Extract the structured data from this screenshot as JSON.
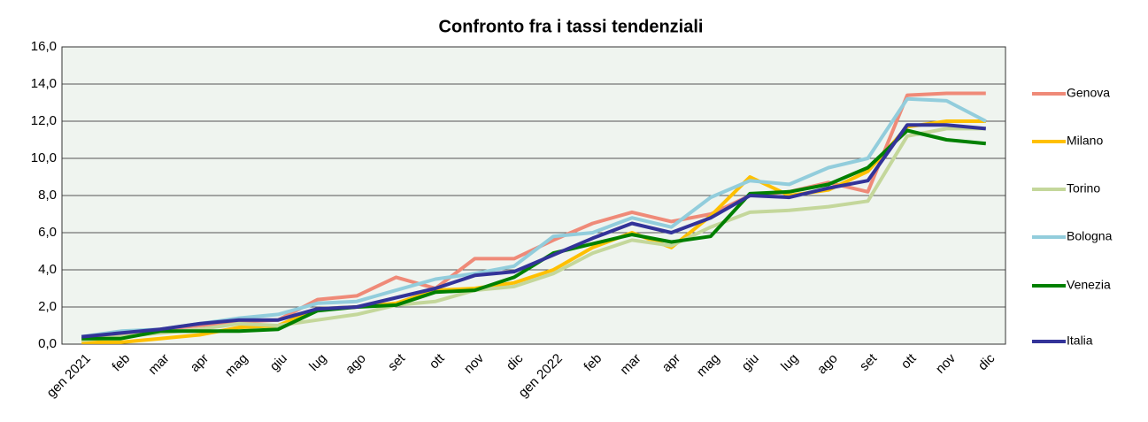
{
  "chart_data": {
    "type": "line",
    "title": "Confronto fra i tassi tendenziali",
    "categories": [
      "gen 2021",
      "feb",
      "mar",
      "apr",
      "mag",
      "giu",
      "lug",
      "ago",
      "set",
      "ott",
      "nov",
      "dic",
      "gen 2022",
      "feb",
      "mar",
      "apr",
      "mag",
      "giu",
      "lug",
      "ago",
      "set",
      "ott",
      "nov",
      "dic"
    ],
    "series": [
      {
        "name": "Genova",
        "color": "#ef8a78",
        "values": [
          0.3,
          0.5,
          0.8,
          1.0,
          1.2,
          1.3,
          2.4,
          2.6,
          3.6,
          3.0,
          4.6,
          4.6,
          5.6,
          6.5,
          7.1,
          6.6,
          7.0,
          8.0,
          8.2,
          8.7,
          8.2,
          13.4,
          13.5,
          13.5
        ]
      },
      {
        "name": "Milano",
        "color": "#ffc000",
        "values": [
          0.1,
          0.1,
          0.3,
          0.5,
          0.9,
          1.0,
          1.9,
          2.0,
          2.2,
          2.9,
          3.0,
          3.3,
          4.0,
          5.2,
          6.0,
          5.2,
          6.9,
          9.0,
          8.0,
          8.3,
          9.3,
          11.7,
          12.0,
          12.0
        ]
      },
      {
        "name": "Torino",
        "color": "#c4d79b",
        "values": [
          0.2,
          0.4,
          0.6,
          0.8,
          1.1,
          1.0,
          1.3,
          1.6,
          2.1,
          2.3,
          2.9,
          3.1,
          3.8,
          4.9,
          5.6,
          5.3,
          6.3,
          7.1,
          7.2,
          7.4,
          7.7,
          11.2,
          11.6,
          11.6
        ]
      },
      {
        "name": "Bologna",
        "color": "#92cddc",
        "values": [
          0.4,
          0.7,
          0.8,
          1.1,
          1.4,
          1.6,
          2.2,
          2.3,
          2.9,
          3.5,
          3.8,
          4.2,
          5.8,
          6.0,
          6.8,
          6.3,
          7.9,
          8.8,
          8.6,
          9.5,
          10.0,
          13.2,
          13.1,
          12.0
        ]
      },
      {
        "name": "Venezia",
        "color": "#008000",
        "values": [
          0.3,
          0.3,
          0.7,
          0.7,
          0.7,
          0.8,
          1.8,
          2.0,
          2.1,
          2.8,
          2.9,
          3.6,
          4.9,
          5.4,
          5.9,
          5.5,
          5.8,
          8.1,
          8.2,
          8.6,
          9.5,
          11.5,
          11.0,
          10.8
        ]
      },
      {
        "name": "Italia",
        "color": "#333399",
        "values": [
          0.4,
          0.6,
          0.8,
          1.1,
          1.3,
          1.3,
          1.9,
          2.0,
          2.5,
          3.0,
          3.7,
          3.9,
          4.8,
          5.7,
          6.5,
          6.0,
          6.8,
          8.0,
          7.9,
          8.4,
          8.8,
          11.8,
          11.8,
          11.6
        ]
      }
    ],
    "ylim": [
      0,
      16
    ],
    "yticks": [
      {
        "value": 0,
        "label": "0,0"
      },
      {
        "value": 2,
        "label": "2,0"
      },
      {
        "value": 4,
        "label": "4,0"
      },
      {
        "value": 6,
        "label": "6,0"
      },
      {
        "value": 8,
        "label": "8,0"
      },
      {
        "value": 10,
        "label": "10,0"
      },
      {
        "value": 12,
        "label": "12,0"
      },
      {
        "value": 14,
        "label": "14,0"
      },
      {
        "value": 16,
        "label": "16,0"
      }
    ],
    "grid": true,
    "legend": "right"
  }
}
